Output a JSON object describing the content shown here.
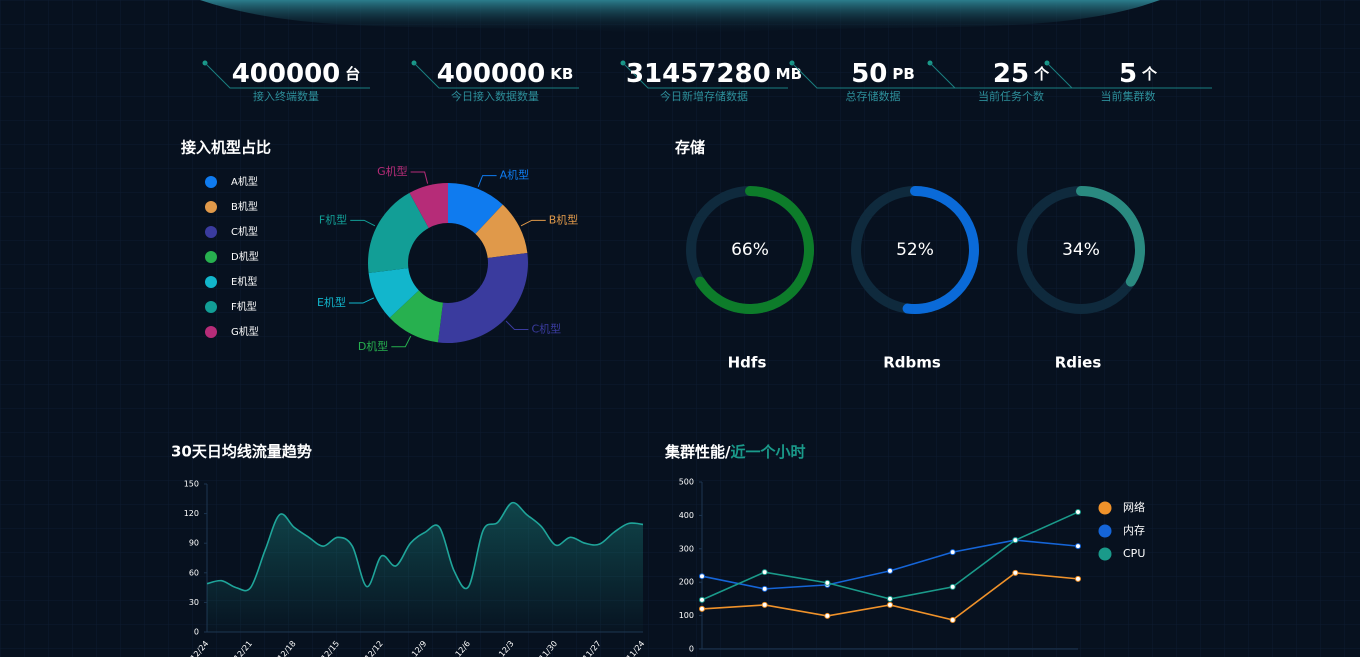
{
  "kpis": [
    {
      "value": 400000,
      "unit": "台",
      "label": "接入终端数量"
    },
    {
      "value": 400000,
      "unit": "KB",
      "label": "今日接入数据数量"
    },
    {
      "value": 31457280,
      "unit": "MB",
      "label": "今日新增存储数据"
    },
    {
      "value": 50,
      "unit": "PB",
      "label": "总存储数据"
    },
    {
      "value": 25,
      "unit": "个",
      "label": "当前任务个数"
    },
    {
      "value": 5,
      "unit": "个",
      "label": "当前集群数"
    }
  ],
  "chart_data": [
    {
      "type": "pie",
      "title": "接入机型占比",
      "categories": [
        "A机型",
        "B机型",
        "C机型",
        "D机型",
        "E机型",
        "F机型",
        "G机型"
      ],
      "values": [
        12,
        11,
        29,
        11,
        10,
        19,
        8
      ],
      "colors": [
        "#0f7bef",
        "#e0994a",
        "#3a3b9e",
        "#27b04f",
        "#12b6cc",
        "#129e96",
        "#b62c78"
      ]
    },
    {
      "type": "gauge",
      "title": "存储",
      "categories": [
        "Hdfs",
        "Rdbms",
        "Rdies"
      ],
      "values": [
        66,
        52,
        34
      ],
      "value_labels": [
        "66%",
        "52%",
        "34%"
      ],
      "ylim": [
        0,
        100
      ],
      "colors": [
        "#0d7c2a",
        "#0a6ad8",
        "#2a8a80"
      ]
    },
    {
      "type": "line",
      "title": "30天日均线流量趋势",
      "categories": [
        "12/24",
        null,
        null,
        "12/21",
        null,
        null,
        "12/18",
        null,
        null,
        "12/15",
        null,
        null,
        "12/12",
        null,
        null,
        "12/9",
        null,
        null,
        "12/6",
        null,
        null,
        "12/3",
        null,
        null,
        "11/30",
        null,
        null,
        "11/27",
        null,
        null,
        "11/24"
      ],
      "values": [
        49,
        52,
        45,
        45,
        83,
        119,
        106,
        96,
        87,
        96,
        87,
        46,
        77,
        67,
        90,
        101,
        106,
        62,
        46,
        103,
        111,
        131,
        119,
        107,
        88,
        96,
        90,
        89,
        101,
        110,
        109
      ],
      "color": "#1fa59a",
      "area": true,
      "ylim": [
        0,
        150
      ],
      "yticks": [
        0,
        30,
        60,
        90,
        120,
        150
      ]
    },
    {
      "type": "line",
      "title": "集群性能/",
      "subtitle": "近一个小时",
      "categories": [
        null,
        null,
        null,
        null,
        null,
        null,
        null
      ],
      "series": [
        {
          "name": "网络",
          "color": "#f0922a",
          "values": [
            120,
            132,
            99,
            132,
            87,
            228,
            210
          ]
        },
        {
          "name": "内存",
          "color": "#1565d8",
          "values": [
            218,
            180,
            192,
            234,
            290,
            326,
            308
          ]
        },
        {
          "name": "CPU",
          "color": "#1a9a8a",
          "values": [
            147,
            230,
            198,
            150,
            186,
            326,
            410
          ]
        }
      ],
      "ylim": [
        0,
        500
      ],
      "yticks": [
        0,
        100,
        200,
        300,
        400,
        500
      ],
      "legend": "right"
    }
  ]
}
